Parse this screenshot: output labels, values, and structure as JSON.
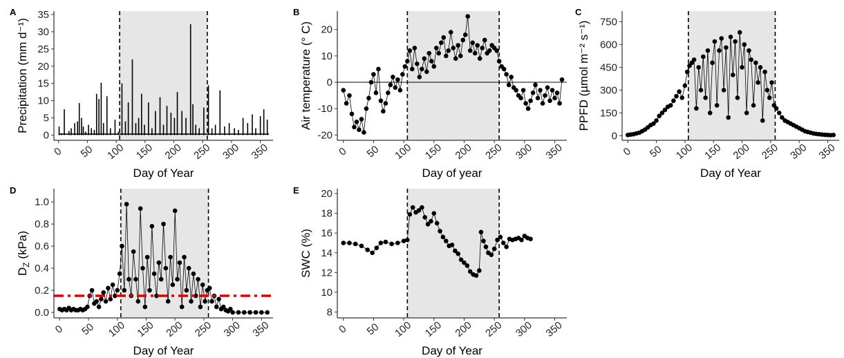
{
  "figure": {
    "vlines": [
      106,
      258
    ],
    "shade": [
      106,
      258
    ]
  },
  "chart_data": [
    {
      "panel": "A",
      "type": "bar",
      "xlabel": "Day of Year",
      "ylabel": "Precipitation (mm d⁻¹)",
      "xlim": [
        -8,
        372
      ],
      "ylim": [
        -1.5,
        36
      ],
      "xticks": [
        0,
        50,
        100,
        150,
        200,
        250,
        300,
        350
      ],
      "yticks": [
        0,
        5,
        10,
        15,
        20,
        25,
        30,
        35
      ],
      "x": [
        1,
        5,
        10,
        18,
        22,
        28,
        33,
        36,
        40,
        43,
        47,
        52,
        57,
        62,
        66,
        70,
        74,
        78,
        84,
        90,
        98,
        104,
        110,
        116,
        121,
        128,
        134,
        139,
        144,
        149,
        156,
        162,
        168,
        176,
        182,
        188,
        195,
        201,
        206,
        214,
        221,
        229,
        233,
        238,
        244,
        252,
        260,
        266,
        272,
        280,
        288,
        296,
        305,
        312,
        320,
        328,
        336,
        342,
        350,
        356,
        362
      ],
      "values": [
        2.5,
        0.5,
        7.5,
        1.2,
        2.0,
        3.5,
        4.0,
        9.3,
        5.0,
        2.5,
        1.0,
        3.0,
        2.0,
        1.5,
        12.0,
        10.5,
        15.2,
        3.5,
        11.3,
        2.0,
        4.5,
        1.0,
        15.0,
        4.0,
        9.5,
        22.0,
        3.5,
        5.0,
        12.0,
        3.0,
        9.5,
        2.0,
        7.0,
        11.0,
        3.0,
        8.5,
        6.5,
        5.0,
        12.5,
        7.0,
        5.0,
        32.2,
        9.0,
        3.0,
        2.0,
        8.0,
        14.5,
        2.0,
        3.0,
        13.0,
        2.5,
        3.5,
        2.0,
        1.5,
        5.0,
        3.5,
        6.0,
        2.0,
        5.5,
        7.5,
        4.5
      ]
    },
    {
      "panel": "B",
      "type": "line",
      "xlabel": "Day of year",
      "ylabel": "Air temperature (° C)",
      "xlim": [
        -10,
        370
      ],
      "ylim": [
        -22,
        27
      ],
      "xticks": [
        0,
        50,
        100,
        150,
        200,
        250,
        300,
        350
      ],
      "yticks": [
        -20,
        -10,
        0,
        10,
        20
      ],
      "zero_line": true,
      "x": [
        0,
        5,
        10,
        14,
        18,
        22,
        26,
        30,
        34,
        38,
        42,
        46,
        50,
        54,
        58,
        62,
        66,
        70,
        74,
        78,
        82,
        86,
        90,
        94,
        98,
        102,
        106,
        110,
        114,
        118,
        122,
        126,
        130,
        134,
        138,
        142,
        146,
        150,
        154,
        158,
        162,
        166,
        170,
        174,
        178,
        182,
        186,
        190,
        194,
        198,
        202,
        206,
        210,
        214,
        218,
        222,
        226,
        230,
        234,
        238,
        242,
        246,
        250,
        254,
        258,
        262,
        266,
        270,
        274,
        278,
        282,
        286,
        290,
        294,
        298,
        302,
        306,
        310,
        314,
        318,
        322,
        326,
        330,
        334,
        338,
        342,
        346,
        350,
        354,
        358,
        362
      ],
      "values": [
        -3,
        -8,
        -5,
        -12,
        -17,
        -15,
        -18,
        -14,
        -19,
        -10,
        -6,
        0,
        3,
        -4,
        5,
        -7,
        -11,
        -8,
        -4,
        -1,
        2,
        -2,
        1,
        -3,
        3,
        6,
        8,
        12,
        5,
        13,
        7,
        2,
        5,
        9,
        4,
        11,
        8,
        6,
        13,
        11,
        15,
        17,
        10,
        12,
        19,
        13,
        9,
        14,
        10,
        16,
        18,
        25,
        12,
        15,
        11,
        14,
        9,
        13,
        16,
        11,
        12,
        14,
        13,
        12,
        8,
        6,
        5,
        3,
        -1,
        2,
        -2,
        -3,
        -5,
        -6,
        -3,
        -8,
        -10,
        -7,
        -4,
        -1,
        -6,
        -3,
        -8,
        -5,
        -2,
        -7,
        -3,
        -6,
        -4,
        -8,
        1
      ]
    },
    {
      "panel": "C",
      "type": "line",
      "xlabel": "Day of Year",
      "ylabel": "PPFD (µmol m⁻² s⁻¹)",
      "xlim": [
        -10,
        370
      ],
      "ylim": [
        -30,
        820
      ],
      "xticks": [
        0,
        50,
        100,
        150,
        200,
        250,
        300,
        350
      ],
      "yticks": [
        0,
        150,
        300,
        450,
        600,
        750
      ],
      "x": [
        0,
        5,
        10,
        15,
        20,
        25,
        30,
        35,
        40,
        45,
        50,
        55,
        60,
        65,
        70,
        75,
        80,
        85,
        90,
        95,
        100,
        104,
        108,
        112,
        116,
        120,
        124,
        128,
        132,
        136,
        140,
        144,
        148,
        152,
        156,
        160,
        164,
        168,
        172,
        176,
        180,
        184,
        188,
        192,
        196,
        200,
        204,
        208,
        212,
        216,
        220,
        224,
        228,
        232,
        236,
        240,
        244,
        248,
        252,
        256,
        260,
        265,
        270,
        275,
        280,
        285,
        290,
        295,
        300,
        305,
        310,
        315,
        320,
        325,
        330,
        335,
        340,
        345,
        350,
        355,
        360
      ],
      "values": [
        5,
        8,
        10,
        15,
        20,
        30,
        40,
        55,
        70,
        80,
        100,
        130,
        150,
        170,
        190,
        200,
        230,
        260,
        290,
        250,
        330,
        420,
        460,
        480,
        500,
        180,
        450,
        300,
        520,
        250,
        560,
        150,
        480,
        620,
        200,
        560,
        640,
        300,
        580,
        120,
        650,
        400,
        620,
        250,
        680,
        450,
        600,
        150,
        560,
        500,
        200,
        480,
        350,
        450,
        100,
        420,
        300,
        250,
        350,
        200,
        180,
        150,
        120,
        100,
        90,
        80,
        70,
        60,
        50,
        40,
        30,
        25,
        20,
        15,
        12,
        10,
        8,
        6,
        5,
        4,
        5
      ]
    },
    {
      "panel": "D",
      "type": "line",
      "xlabel": "Day of Year",
      "ylabel": "D_Z (kPa)",
      "xlim": [
        -10,
        370
      ],
      "ylim": [
        -0.05,
        1.12
      ],
      "xticks": [
        0,
        50,
        100,
        150,
        200,
        250,
        300,
        350
      ],
      "yticks": [
        0.0,
        0.2,
        0.4,
        0.6,
        0.8,
        1.0
      ],
      "threshold": 0.15,
      "x": [
        0,
        4,
        8,
        12,
        16,
        20,
        24,
        28,
        32,
        36,
        40,
        44,
        48,
        52,
        56,
        60,
        64,
        68,
        72,
        76,
        80,
        84,
        88,
        92,
        96,
        100,
        104,
        108,
        112,
        116,
        120,
        124,
        128,
        132,
        136,
        140,
        144,
        148,
        152,
        156,
        160,
        164,
        168,
        172,
        176,
        180,
        184,
        188,
        192,
        196,
        200,
        204,
        208,
        212,
        216,
        220,
        224,
        228,
        232,
        236,
        240,
        244,
        248,
        252,
        256,
        260,
        264,
        268,
        272,
        276,
        280,
        284,
        288,
        292,
        296,
        300,
        310,
        320,
        330,
        340,
        350,
        360
      ],
      "values": [
        0.03,
        0.02,
        0.03,
        0.02,
        0.04,
        0.02,
        0.03,
        0.02,
        0.02,
        0.03,
        0.02,
        0.03,
        0.05,
        0.15,
        0.2,
        0.08,
        0.1,
        0.05,
        0.12,
        0.18,
        0.1,
        0.22,
        0.12,
        0.25,
        0.15,
        0.2,
        0.35,
        0.6,
        0.2,
        0.98,
        0.3,
        0.15,
        0.55,
        0.3,
        0.1,
        0.94,
        0.4,
        0.05,
        0.5,
        0.2,
        0.78,
        0.35,
        0.15,
        0.45,
        0.3,
        0.8,
        0.4,
        0.1,
        0.5,
        0.25,
        0.92,
        0.3,
        0.45,
        0.05,
        0.5,
        0.2,
        0.4,
        0.1,
        0.35,
        0.15,
        0.3,
        0.05,
        0.25,
        0.1,
        0.2,
        0.22,
        0.1,
        0.15,
        0.05,
        0.12,
        0.03,
        0.05,
        0.02,
        0.01,
        0.03,
        0.0,
        0.0,
        0.0,
        0.0,
        0.0,
        0.0,
        0.0
      ]
    },
    {
      "panel": "E",
      "type": "line",
      "xlabel": "Day of Year",
      "ylabel": "SWC (%)",
      "xlim": [
        -10,
        370
      ],
      "ylim": [
        7.4,
        20.5
      ],
      "xticks": [
        0,
        50,
        100,
        150,
        200,
        250,
        300,
        350
      ],
      "yticks": [
        8,
        10,
        12,
        14,
        16,
        18,
        20
      ],
      "x": [
        0,
        10,
        20,
        30,
        40,
        48,
        55,
        62,
        70,
        80,
        90,
        100,
        106,
        110,
        115,
        120,
        125,
        130,
        135,
        140,
        145,
        150,
        155,
        160,
        165,
        170,
        175,
        180,
        185,
        190,
        195,
        200,
        205,
        210,
        215,
        220,
        225,
        228,
        232,
        236,
        240,
        245,
        250,
        255,
        260,
        265,
        270,
        275,
        280,
        285,
        290,
        295,
        300,
        305,
        310
      ],
      "values": [
        15.0,
        15.0,
        14.9,
        14.7,
        14.3,
        14.0,
        14.5,
        15.0,
        15.1,
        14.9,
        15.0,
        15.2,
        15.3,
        17.9,
        18.6,
        18.1,
        18.3,
        18.6,
        17.6,
        16.9,
        17.2,
        18.0,
        17.0,
        16.2,
        15.6,
        15.2,
        14.7,
        14.8,
        14.2,
        13.9,
        13.3,
        13.0,
        12.7,
        12.1,
        11.8,
        11.7,
        12.2,
        16.1,
        15.2,
        14.6,
        14.0,
        13.8,
        14.4,
        15.3,
        15.6,
        15.0,
        14.6,
        15.4,
        15.3,
        15.4,
        15.5,
        15.3,
        15.7,
        15.5,
        15.4
      ]
    }
  ]
}
